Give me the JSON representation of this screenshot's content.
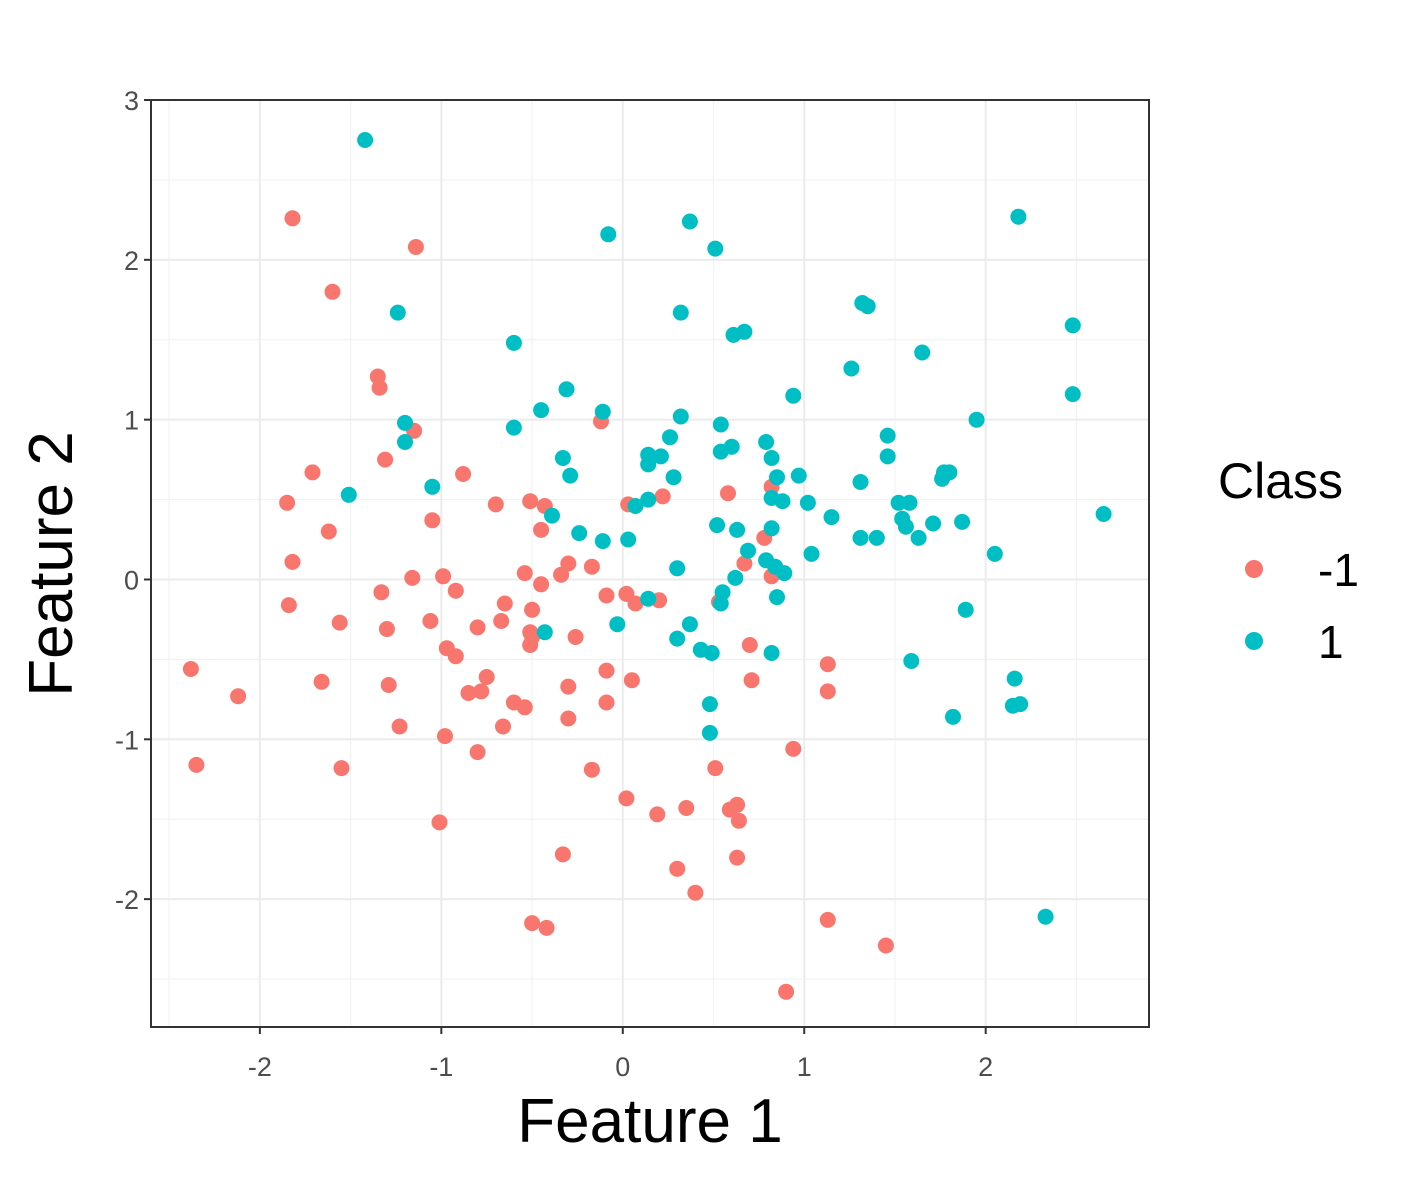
{
  "chart_data": {
    "type": "scatter",
    "xlabel": "Feature 1",
    "ylabel": "Feature 2",
    "xlim": [
      -2.6,
      2.9
    ],
    "ylim": [
      -2.8,
      3.0
    ],
    "x_ticks": [
      -2,
      -1,
      0,
      1,
      2
    ],
    "y_ticks": [
      -2,
      -1,
      0,
      1,
      2,
      3
    ],
    "x_tick_labels": [
      "-2",
      "-1",
      "0",
      "1",
      "2"
    ],
    "y_tick_labels": [
      "-2",
      "-1",
      "0",
      "1",
      "2",
      "3"
    ],
    "grid": true,
    "legend": {
      "title": "Class",
      "position": "right"
    },
    "series": [
      {
        "name": "-1",
        "color": "#F8766D",
        "points": [
          [
            -1.82,
            2.26
          ],
          [
            -1.14,
            2.08
          ],
          [
            -1.6,
            1.8
          ],
          [
            -1.35,
            1.27
          ],
          [
            -1.34,
            1.2
          ],
          [
            -1.15,
            0.93
          ],
          [
            -1.31,
            0.75
          ],
          [
            -1.71,
            0.67
          ],
          [
            -0.88,
            0.66
          ],
          [
            -1.85,
            0.48
          ],
          [
            -0.7,
            0.47
          ],
          [
            -0.51,
            0.49
          ],
          [
            -0.43,
            0.46
          ],
          [
            -1.05,
            0.37
          ],
          [
            -1.62,
            0.3
          ],
          [
            -0.45,
            0.31
          ],
          [
            -1.82,
            0.11
          ],
          [
            -0.3,
            0.1
          ],
          [
            -0.17,
            0.08
          ],
          [
            -0.54,
            0.04
          ],
          [
            -0.34,
            0.03
          ],
          [
            -1.16,
            0.01
          ],
          [
            -0.99,
            0.02
          ],
          [
            -0.45,
            -0.03
          ],
          [
            -1.33,
            -0.08
          ],
          [
            -0.92,
            -0.07
          ],
          [
            -0.09,
            -0.1
          ],
          [
            0.02,
            -0.09
          ],
          [
            -1.84,
            -0.16
          ],
          [
            -0.65,
            -0.15
          ],
          [
            0.07,
            -0.15
          ],
          [
            0.2,
            -0.13
          ],
          [
            -0.5,
            -0.19
          ],
          [
            -1.56,
            -0.27
          ],
          [
            -1.3,
            -0.31
          ],
          [
            -1.06,
            -0.26
          ],
          [
            -0.8,
            -0.3
          ],
          [
            -0.67,
            -0.26
          ],
          [
            -0.51,
            -0.33
          ],
          [
            -0.5,
            -0.36
          ],
          [
            -0.26,
            -0.36
          ],
          [
            -0.97,
            -0.43
          ],
          [
            -0.92,
            -0.48
          ],
          [
            -0.51,
            -0.41
          ],
          [
            -2.38,
            -0.56
          ],
          [
            -0.09,
            -0.57
          ],
          [
            -0.75,
            -0.61
          ],
          [
            -1.66,
            -0.64
          ],
          [
            -1.29,
            -0.66
          ],
          [
            -0.78,
            -0.7
          ],
          [
            -0.85,
            -0.71
          ],
          [
            -0.3,
            -0.67
          ],
          [
            0.05,
            -0.63
          ],
          [
            -2.12,
            -0.73
          ],
          [
            -0.6,
            -0.77
          ],
          [
            -0.54,
            -0.8
          ],
          [
            -0.09,
            -0.77
          ],
          [
            -1.23,
            -0.92
          ],
          [
            -0.66,
            -0.92
          ],
          [
            -0.3,
            -0.87
          ],
          [
            -0.98,
            -0.98
          ],
          [
            -0.8,
            -1.08
          ],
          [
            -2.35,
            -1.16
          ],
          [
            -1.55,
            -1.18
          ],
          [
            -0.17,
            -1.19
          ],
          [
            0.51,
            -1.18
          ],
          [
            0.02,
            -1.37
          ],
          [
            -1.01,
            -1.52
          ],
          [
            0.19,
            -1.47
          ],
          [
            0.35,
            -1.43
          ],
          [
            0.59,
            -1.44
          ],
          [
            0.63,
            -1.41
          ],
          [
            0.64,
            -1.51
          ],
          [
            -0.33,
            -1.72
          ],
          [
            0.63,
            -1.74
          ],
          [
            0.3,
            -1.81
          ],
          [
            0.4,
            -1.96
          ],
          [
            -0.5,
            -2.15
          ],
          [
            -0.42,
            -2.18
          ],
          [
            1.13,
            -2.13
          ],
          [
            1.45,
            -2.29
          ],
          [
            0.9,
            -2.58
          ],
          [
            0.94,
            -1.06
          ],
          [
            1.13,
            -0.53
          ],
          [
            1.13,
            -0.7
          ],
          [
            0.7,
            -0.41
          ],
          [
            0.71,
            -0.63
          ],
          [
            0.53,
            -0.14
          ],
          [
            0.67,
            0.1
          ],
          [
            0.82,
            0.02
          ],
          [
            0.78,
            0.26
          ],
          [
            0.82,
            0.58
          ],
          [
            0.58,
            0.54
          ],
          [
            0.22,
            0.52
          ],
          [
            0.03,
            0.47
          ],
          [
            -0.12,
            0.99
          ]
        ]
      },
      {
        "name": "1",
        "color": "#00BFC4",
        "points": [
          [
            -1.42,
            2.75
          ],
          [
            -0.08,
            2.16
          ],
          [
            0.37,
            2.24
          ],
          [
            0.51,
            2.07
          ],
          [
            2.18,
            2.27
          ],
          [
            -1.24,
            1.67
          ],
          [
            0.32,
            1.67
          ],
          [
            0.61,
            1.53
          ],
          [
            0.67,
            1.55
          ],
          [
            1.32,
            1.73
          ],
          [
            1.35,
            1.71
          ],
          [
            2.48,
            1.59
          ],
          [
            -0.6,
            1.48
          ],
          [
            1.65,
            1.42
          ],
          [
            1.26,
            1.32
          ],
          [
            -0.31,
            1.19
          ],
          [
            0.94,
            1.15
          ],
          [
            2.48,
            1.16
          ],
          [
            -0.45,
            1.06
          ],
          [
            -0.11,
            1.05
          ],
          [
            0.32,
            1.02
          ],
          [
            1.95,
            1.0
          ],
          [
            -1.2,
            0.98
          ],
          [
            -0.6,
            0.95
          ],
          [
            0.54,
            0.97
          ],
          [
            1.46,
            0.9
          ],
          [
            -1.2,
            0.86
          ],
          [
            0.26,
            0.89
          ],
          [
            0.79,
            0.86
          ],
          [
            0.6,
            0.83
          ],
          [
            0.14,
            0.78
          ],
          [
            0.21,
            0.77
          ],
          [
            0.54,
            0.8
          ],
          [
            0.82,
            0.76
          ],
          [
            1.46,
            0.77
          ],
          [
            -0.33,
            0.76
          ],
          [
            0.14,
            0.72
          ],
          [
            -0.29,
            0.65
          ],
          [
            0.28,
            0.64
          ],
          [
            0.85,
            0.64
          ],
          [
            0.97,
            0.65
          ],
          [
            1.77,
            0.67
          ],
          [
            1.8,
            0.67
          ],
          [
            1.76,
            0.63
          ],
          [
            -1.05,
            0.58
          ],
          [
            -1.51,
            0.53
          ],
          [
            0.14,
            0.5
          ],
          [
            0.82,
            0.51
          ],
          [
            0.88,
            0.49
          ],
          [
            1.02,
            0.48
          ],
          [
            1.52,
            0.48
          ],
          [
            1.58,
            0.48
          ],
          [
            0.07,
            0.46
          ],
          [
            -0.39,
            0.4
          ],
          [
            1.15,
            0.39
          ],
          [
            2.65,
            0.41
          ],
          [
            1.54,
            0.38
          ],
          [
            0.52,
            0.34
          ],
          [
            0.63,
            0.31
          ],
          [
            0.82,
            0.32
          ],
          [
            1.56,
            0.33
          ],
          [
            1.71,
            0.35
          ],
          [
            1.87,
            0.36
          ],
          [
            -0.24,
            0.29
          ],
          [
            1.31,
            0.26
          ],
          [
            1.4,
            0.26
          ],
          [
            1.63,
            0.26
          ],
          [
            -0.11,
            0.24
          ],
          [
            0.03,
            0.25
          ],
          [
            0.69,
            0.18
          ],
          [
            1.04,
            0.16
          ],
          [
            2.05,
            0.16
          ],
          [
            0.79,
            0.12
          ],
          [
            0.84,
            0.08
          ],
          [
            0.3,
            0.07
          ],
          [
            0.89,
            0.04
          ],
          [
            0.62,
            0.01
          ],
          [
            0.55,
            -0.08
          ],
          [
            0.85,
            -0.11
          ],
          [
            0.14,
            -0.12
          ],
          [
            0.54,
            -0.15
          ],
          [
            1.89,
            -0.19
          ],
          [
            -0.03,
            -0.28
          ],
          [
            0.37,
            -0.28
          ],
          [
            -0.43,
            -0.33
          ],
          [
            0.3,
            -0.37
          ],
          [
            0.43,
            -0.44
          ],
          [
            0.49,
            -0.46
          ],
          [
            0.82,
            -0.46
          ],
          [
            1.59,
            -0.51
          ],
          [
            2.16,
            -0.62
          ],
          [
            0.48,
            -0.78
          ],
          [
            2.15,
            -0.79
          ],
          [
            2.19,
            -0.78
          ],
          [
            1.82,
            -0.86
          ],
          [
            0.48,
            -0.96
          ],
          [
            2.33,
            -2.11
          ],
          [
            1.31,
            0.61
          ]
        ]
      }
    ]
  }
}
